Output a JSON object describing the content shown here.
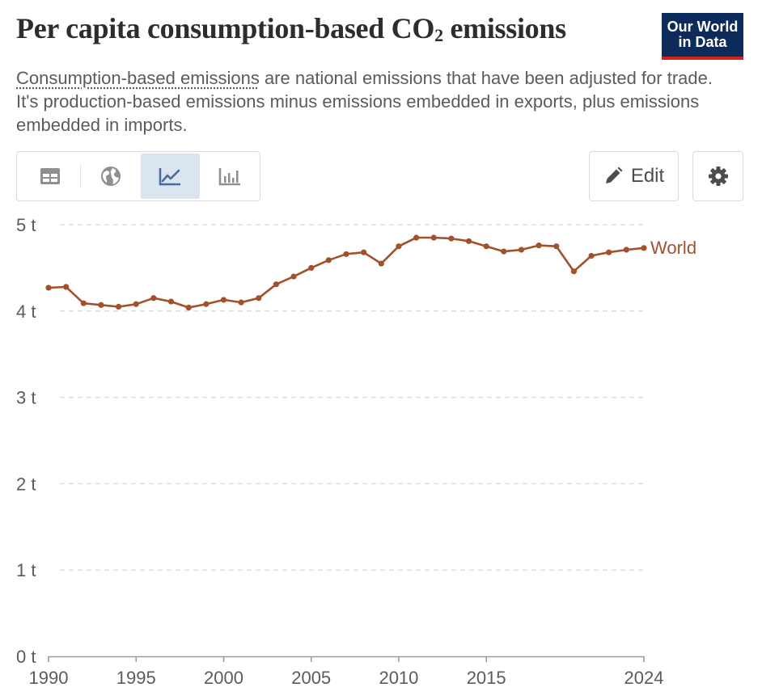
{
  "header": {
    "title_main": "Per capita consumption-based CO",
    "title_sub": "2",
    "title_tail": " emissions",
    "logo_line1": "Our World",
    "logo_line2": "in Data",
    "subtitle_term": "Consumption-based emissions",
    "subtitle_rest": " are national emissions that have been adjusted for trade. It's production-based emissions minus emissions embedded in exports, plus emissions embedded in imports."
  },
  "toolbar": {
    "tabs": [
      {
        "name": "table",
        "icon": "table-icon",
        "active": false
      },
      {
        "name": "map",
        "icon": "globe-icon",
        "active": false
      },
      {
        "name": "line-chart",
        "icon": "line-chart-icon",
        "active": true
      },
      {
        "name": "bar-chart",
        "icon": "bar-chart-icon",
        "active": false
      }
    ],
    "edit_label": "Edit",
    "edit_icon": "pencil-icon",
    "settings_icon": "gear-icon"
  },
  "colors": {
    "series": "#a2512c",
    "accent_tab": "#dbe5f0",
    "logo_bg": "#0c2b5a",
    "logo_stripe": "#ce261e"
  },
  "chart_data": {
    "type": "line",
    "title": "Per capita consumption-based CO₂ emissions",
    "ylim": [
      0,
      5
    ],
    "xlim": [
      1990,
      2024
    ],
    "y_ticks": [
      {
        "value": 0,
        "label": "0 t"
      },
      {
        "value": 1,
        "label": "1 t"
      },
      {
        "value": 2,
        "label": "2 t"
      },
      {
        "value": 3,
        "label": "3 t"
      },
      {
        "value": 4,
        "label": "4 t"
      },
      {
        "value": 5,
        "label": "5 t"
      }
    ],
    "x_ticks": [
      {
        "value": 1990,
        "label": "1990"
      },
      {
        "value": 1995,
        "label": "1995"
      },
      {
        "value": 2000,
        "label": "2000"
      },
      {
        "value": 2005,
        "label": "2005"
      },
      {
        "value": 2010,
        "label": "2010"
      },
      {
        "value": 2015,
        "label": "2015"
      },
      {
        "value": 2024,
        "label": "2024"
      }
    ],
    "grid": true,
    "series": [
      {
        "name": "World",
        "color": "#a2512c",
        "x": [
          1990,
          1991,
          1992,
          1993,
          1994,
          1995,
          1996,
          1997,
          1998,
          1999,
          2000,
          2001,
          2002,
          2003,
          2004,
          2005,
          2006,
          2007,
          2008,
          2009,
          2010,
          2011,
          2012,
          2013,
          2014,
          2015,
          2016,
          2017,
          2018,
          2019,
          2020,
          2021,
          2022,
          2023,
          2024
        ],
        "y": [
          4.27,
          4.28,
          4.09,
          4.07,
          4.05,
          4.08,
          4.15,
          4.11,
          4.04,
          4.08,
          4.13,
          4.1,
          4.15,
          4.31,
          4.4,
          4.5,
          4.59,
          4.66,
          4.68,
          4.55,
          4.75,
          4.85,
          4.85,
          4.84,
          4.81,
          4.75,
          4.69,
          4.71,
          4.76,
          4.75,
          4.46,
          4.64,
          4.68,
          4.71,
          4.73
        ]
      }
    ]
  }
}
